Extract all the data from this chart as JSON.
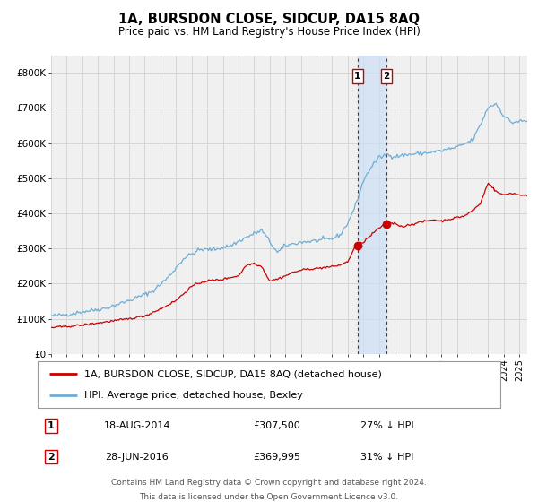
{
  "title": "1A, BURSDON CLOSE, SIDCUP, DA15 8AQ",
  "subtitle": "Price paid vs. HM Land Registry's House Price Index (HPI)",
  "legend_house": "1A, BURSDON CLOSE, SIDCUP, DA15 8AQ (detached house)",
  "legend_hpi": "HPI: Average price, detached house, Bexley",
  "sale1_label": "1",
  "sale1_date": "18-AUG-2014",
  "sale1_price": "£307,500",
  "sale1_pct": "27% ↓ HPI",
  "sale2_label": "2",
  "sale2_date": "28-JUN-2016",
  "sale2_price": "£369,995",
  "sale2_pct": "31% ↓ HPI",
  "footer1": "Contains HM Land Registry data © Crown copyright and database right 2024.",
  "footer2": "This data is licensed under the Open Government Licence v3.0.",
  "sale1_year": 2014.63,
  "sale2_year": 2016.49,
  "sale1_value": 307500,
  "sale2_value": 369995,
  "hpi_color": "#6baed6",
  "house_color": "#cc0000",
  "bg_color": "#f0f0f0",
  "grid_color": "#cccccc",
  "highlight_color": "#cce0f5",
  "vline_color": "#cc0000",
  "title_fontsize": 10.5,
  "subtitle_fontsize": 8.5,
  "axis_fontsize": 7.5,
  "legend_fontsize": 8,
  "table_fontsize": 8,
  "footer_fontsize": 6.5,
  "ylim_max": 850000,
  "xmin": 1995,
  "xmax": 2025.5,
  "hpi_anchors": {
    "1995.0": 108000,
    "1996.0": 112000,
    "1997.0": 120000,
    "1998.5": 130000,
    "2000.0": 152000,
    "2001.5": 178000,
    "2002.5": 218000,
    "2003.5": 272000,
    "2004.5": 296000,
    "2005.5": 298000,
    "2006.5": 308000,
    "2007.5": 332000,
    "2008.5": 352000,
    "2009.5": 288000,
    "2010.0": 308000,
    "2011.0": 318000,
    "2012.0": 322000,
    "2013.0": 328000,
    "2013.5": 338000,
    "2014.0": 372000,
    "2014.5": 422000,
    "2015.0": 492000,
    "2015.5": 532000,
    "2016.0": 558000,
    "2016.5": 568000,
    "2017.0": 562000,
    "2018.0": 568000,
    "2019.0": 572000,
    "2020.0": 578000,
    "2021.0": 588000,
    "2022.0": 608000,
    "2022.5": 652000,
    "2023.0": 702000,
    "2023.5": 712000,
    "2024.0": 678000,
    "2024.5": 658000,
    "2025.0": 662000
  },
  "house_anchors": {
    "1995.0": 75000,
    "1996.0": 78000,
    "1997.0": 82000,
    "1998.0": 88000,
    "1999.0": 94000,
    "2000.0": 100000,
    "2001.0": 108000,
    "2002.0": 128000,
    "2003.0": 152000,
    "2003.5": 172000,
    "2004.0": 192000,
    "2004.5": 202000,
    "2005.0": 208000,
    "2006.0": 212000,
    "2006.5": 218000,
    "2007.0": 222000,
    "2007.5": 252000,
    "2008.0": 258000,
    "2008.5": 248000,
    "2009.0": 208000,
    "2009.5": 213000,
    "2010.0": 222000,
    "2010.5": 232000,
    "2011.0": 238000,
    "2011.5": 242000,
    "2012.0": 243000,
    "2012.5": 246000,
    "2013.0": 248000,
    "2013.5": 253000,
    "2014.0": 262000,
    "2014.5": 307500,
    "2015.0": 318000,
    "2015.5": 338000,
    "2016.0": 358000,
    "2016.5": 369995,
    "2017.0": 372000,
    "2017.5": 362000,
    "2018.0": 368000,
    "2018.5": 373000,
    "2019.0": 378000,
    "2019.5": 382000,
    "2020.0": 378000,
    "2020.5": 383000,
    "2021.0": 388000,
    "2021.5": 393000,
    "2022.0": 408000,
    "2022.5": 428000,
    "2023.0": 488000,
    "2023.5": 462000,
    "2024.0": 452000,
    "2024.5": 458000,
    "2025.0": 452000
  }
}
